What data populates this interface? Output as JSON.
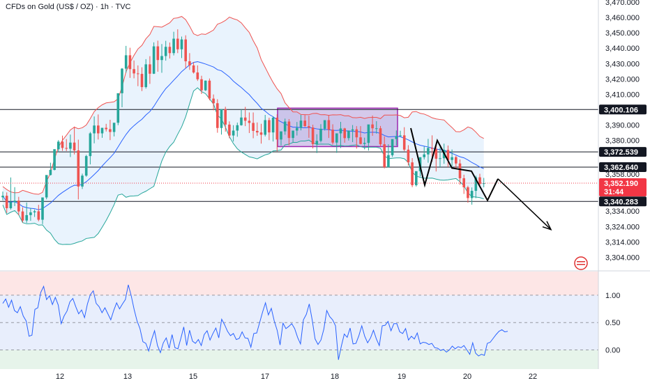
{
  "header": {
    "title": "CFDs on Gold (US$ / OZ) · 1h · TVC"
  },
  "colors": {
    "up": "#26a69a",
    "down": "#ef5350",
    "upper_band": "#ef5350",
    "middle_band": "#2962ff",
    "lower_band": "#26a69a",
    "band_fill": "#e3f0fc",
    "rectangle": "#9c27b0",
    "rectangle_fill": "#b39ddb",
    "osc_line": "#2962ff",
    "osc_bg_top": "#fde6e6",
    "osc_bg_mid": "#e8eefc",
    "osc_bg_bot": "#e6f4ea",
    "level_line": "#131722",
    "last_price": "#f23645"
  },
  "chart_data": [
    {
      "type": "candlestick",
      "title": "CFDs on Gold (US$ / OZ) · 1h · TVC",
      "x_ticks": [
        "12",
        "13",
        "15",
        "17",
        "18",
        "19",
        "20",
        "22"
      ],
      "y_ticks": [
        "3,470.000",
        "3,460.000",
        "3,450.000",
        "3,440.000",
        "3,430.000",
        "3,420.000",
        "3,410.000",
        "3,390.000",
        "3,380.000",
        "3,358.000",
        "3,334.000",
        "3,324.000",
        "3,314.000",
        "3,304.000"
      ],
      "ylim": [
        3304,
        3470
      ],
      "horizontal_levels": [
        {
          "value": 3400.106,
          "label": "3,400.106"
        },
        {
          "value": 3372.539,
          "label": "3,372.539"
        },
        {
          "value": 3362.64,
          "label": "3,362.640"
        },
        {
          "value": 3340.283,
          "label": "3,340.283"
        }
      ],
      "last_price": {
        "value": 3352.19,
        "label": "3,352.190",
        "countdown": "31:44"
      },
      "candles": [
        [
          0,
          3343.0,
          3346.7,
          3344.0,
          3341.0
        ],
        [
          1,
          3344.0,
          3346.2,
          3335.9,
          3332.9
        ],
        [
          2,
          3335.9,
          3355.9,
          3339.8,
          3335.0
        ],
        [
          3,
          3339.8,
          3349.6,
          3340.8,
          3337.3
        ],
        [
          4,
          3340.8,
          3343.3,
          3333.8,
          3331.3
        ],
        [
          5,
          3333.8,
          3336.5,
          3327.9,
          3326.6
        ],
        [
          6,
          3327.9,
          3339.6,
          3331.4,
          3326.3
        ],
        [
          7,
          3331.4,
          3336.1,
          3333.2,
          3327.7
        ],
        [
          8,
          3333.2,
          3335.1,
          3333.9,
          3330.2
        ],
        [
          9,
          3333.9,
          3338.1,
          3328.4,
          3327.4
        ],
        [
          10,
          3328.4,
          3339.3,
          3342.9,
          3325.6
        ],
        [
          11,
          3342.9,
          3356.2,
          3357.5,
          3341.7
        ],
        [
          12,
          3357.5,
          3365.5,
          3360.8,
          3357.2
        ],
        [
          13,
          3360.8,
          3367.8,
          3374.3,
          3360.5
        ],
        [
          14,
          3374.3,
          3380.2,
          3379.2,
          3372.3
        ],
        [
          15,
          3379.2,
          3383.1,
          3375.1,
          3373.2
        ],
        [
          16,
          3375.1,
          3380.9,
          3374.6,
          3373.1
        ],
        [
          17,
          3374.6,
          3383.8,
          3378.6,
          3369.2
        ],
        [
          18,
          3378.6,
          3389.0,
          3373.5,
          3370.9
        ],
        [
          19,
          3373.5,
          3380.5,
          3350.0,
          3341.6
        ],
        [
          20,
          3350.0,
          3358.4,
          3357.1,
          3348.4
        ],
        [
          21,
          3357.1,
          3370.6,
          3369.8,
          3356.4
        ],
        [
          22,
          3369.8,
          3385.5,
          3384.6,
          3364.4
        ],
        [
          23,
          3384.6,
          3395.6,
          3389.7,
          3378.1
        ],
        [
          24,
          3389.7,
          3396.9,
          3384.6,
          3380.6
        ],
        [
          25,
          3384.6,
          3388.2,
          3388.2,
          3381.7
        ],
        [
          26,
          3388.2,
          3390.8,
          3387.3,
          3385.8
        ],
        [
          27,
          3387.3,
          3393.4,
          3385.5,
          3380.2
        ],
        [
          28,
          3385.5,
          3389.6,
          3391.5,
          3382.6
        ],
        [
          29,
          3391.5,
          3407.0,
          3410.7,
          3389.9
        ],
        [
          30,
          3410.7,
          3427.1,
          3426.7,
          3401.6
        ],
        [
          31,
          3426.7,
          3441.5,
          3435.4,
          3424.1
        ],
        [
          32,
          3435.4,
          3440.3,
          3426.4,
          3420.7
        ],
        [
          33,
          3426.4,
          3432.0,
          3423.6,
          3420.4
        ],
        [
          34,
          3423.6,
          3428.8,
          3423.3,
          3415.3
        ],
        [
          35,
          3423.3,
          3427.6,
          3414.7,
          3412.1
        ],
        [
          36,
          3414.7,
          3432.9,
          3429.5,
          3413.7
        ],
        [
          37,
          3429.5,
          3434.8,
          3423.4,
          3416.8
        ],
        [
          38,
          3423.4,
          3443.8,
          3441.2,
          3423.2
        ],
        [
          39,
          3441.2,
          3444.9,
          3432.3,
          3424.7
        ],
        [
          40,
          3432.3,
          3442.7,
          3434.9,
          3424.0
        ],
        [
          41,
          3434.9,
          3444.8,
          3440.9,
          3431.9
        ],
        [
          42,
          3440.9,
          3443.7,
          3436.8,
          3433.3
        ],
        [
          43,
          3436.8,
          3450.7,
          3446.2,
          3435.3
        ],
        [
          44,
          3446.2,
          3452.3,
          3439.3,
          3436.8
        ],
        [
          45,
          3439.3,
          3447.6,
          3445.7,
          3433.6
        ],
        [
          46,
          3445.7,
          3448.4,
          3431.5,
          3426.9
        ],
        [
          47,
          3431.5,
          3436.8,
          3428.8,
          3425.9
        ],
        [
          48,
          3428.8,
          3431.0,
          3424.2,
          3423.5
        ],
        [
          49,
          3424.2,
          3428.8,
          3419.8,
          3418.7
        ],
        [
          50,
          3419.8,
          3422.1,
          3412.6,
          3410.2
        ],
        [
          51,
          3412.6,
          3419.0,
          3418.9,
          3412.2
        ],
        [
          52,
          3418.9,
          3420.3,
          3407.2,
          3406.1
        ],
        [
          53,
          3407.2,
          3409.9,
          3404.2,
          3399.6
        ],
        [
          54,
          3404.2,
          3406.8,
          3388.1,
          3385.0
        ],
        [
          55,
          3388.1,
          3396.8,
          3400.3,
          3383.8
        ],
        [
          56,
          3400.3,
          3401.9,
          3390.3,
          3385.7
        ],
        [
          57,
          3390.3,
          3392.4,
          3383.2,
          3381.4
        ],
        [
          58,
          3383.2,
          3389.9,
          3386.4,
          3379.3
        ],
        [
          59,
          3386.4,
          3391.6,
          3389.9,
          3382.4
        ],
        [
          60,
          3389.9,
          3400.2,
          3394.9,
          3389.6
        ],
        [
          61,
          3394.9,
          3401.8,
          3392.8,
          3389.3
        ],
        [
          62,
          3392.8,
          3398.2,
          3391.4,
          3384.8
        ],
        [
          63,
          3391.4,
          3398.2,
          3386.2,
          3381.4
        ],
        [
          64,
          3386.2,
          3391.7,
          3385.2,
          3383.0
        ],
        [
          65,
          3385.2,
          3390.8,
          3383.7,
          3377.9
        ],
        [
          66,
          3383.7,
          3396.6,
          3393.2,
          3382.6
        ],
        [
          67,
          3393.2,
          3394.8,
          3385.2,
          3380.2
        ],
        [
          68,
          3385.2,
          3395.6,
          3394.8,
          3379.3
        ],
        [
          69,
          3394.8,
          3397.0,
          3380.6,
          3372.9
        ],
        [
          70,
          3380.6,
          3385.1,
          3385.9,
          3376.7
        ],
        [
          71,
          3385.9,
          3394.2,
          3392.3,
          3383.7
        ],
        [
          72,
          3392.3,
          3393.9,
          3381.6,
          3376.8
        ],
        [
          73,
          3381.6,
          3384.2,
          3386.4,
          3378.7
        ],
        [
          74,
          3386.4,
          3392.0,
          3388.2,
          3383.2
        ],
        [
          75,
          3388.2,
          3396.6,
          3392.9,
          3386.5
        ],
        [
          76,
          3392.9,
          3396.6,
          3389.3,
          3388.7
        ],
        [
          77,
          3389.3,
          3396.0,
          3388.4,
          3381.7
        ],
        [
          78,
          3388.4,
          3390.2,
          3377.6,
          3374.8
        ],
        [
          79,
          3377.6,
          3384.0,
          3379.7,
          3371.8
        ],
        [
          80,
          3379.7,
          3390.6,
          3387.6,
          3378.7
        ],
        [
          81,
          3387.6,
          3391.8,
          3393.2,
          3386.4
        ],
        [
          82,
          3393.2,
          3396.4,
          3387.0,
          3381.6
        ],
        [
          83,
          3387.0,
          3390.5,
          3378.6,
          3377.3
        ],
        [
          84,
          3378.6,
          3381.7,
          3384.6,
          3371.9
        ],
        [
          85,
          3384.6,
          3392.1,
          3387.8,
          3375.1
        ],
        [
          86,
          3387.8,
          3388.2,
          3381.5,
          3378.5
        ],
        [
          87,
          3381.5,
          3386.3,
          3386.4,
          3379.9
        ],
        [
          88,
          3386.4,
          3390.0,
          3387.2,
          3378.9
        ],
        [
          89,
          3387.2,
          3389.3,
          3382.0,
          3374.7
        ],
        [
          90,
          3382.0,
          3389.3,
          3377.7,
          3377.4
        ],
        [
          91,
          3377.7,
          3381.8,
          3378.4,
          3374.2
        ],
        [
          92,
          3378.4,
          3383.7,
          3390.4,
          3373.4
        ],
        [
          93,
          3390.4,
          3396.2,
          3387.9,
          3383.0
        ],
        [
          94,
          3387.9,
          3392.5,
          3387.9,
          3384.4
        ],
        [
          95,
          3387.9,
          3389.4,
          3377.5,
          3376.0
        ],
        [
          96,
          3377.5,
          3382.6,
          3362.6,
          3361.8
        ],
        [
          97,
          3362.6,
          3377.5,
          3370.4,
          3362.5
        ],
        [
          98,
          3370.4,
          3379.3,
          3380.9,
          3369.3
        ],
        [
          99,
          3380.9,
          3386.5,
          3382.7,
          3376.6
        ],
        [
          100,
          3382.7,
          3386.3,
          3383.3,
          3382.8
        ],
        [
          101,
          3383.3,
          3388.6,
          3374.0,
          3373.0
        ],
        [
          102,
          3374.0,
          3376.9,
          3365.7,
          3363.6
        ],
        [
          103,
          3365.7,
          3368.5,
          3350.9,
          3349.6
        ],
        [
          104,
          3350.9,
          3358.3,
          3360.0,
          3350.0
        ],
        [
          105,
          3360.0,
          3366.7,
          3369.1,
          3356.6
        ],
        [
          106,
          3369.1,
          3376.1,
          3370.9,
          3367.6
        ],
        [
          107,
          3370.9,
          3381.0,
          3375.1,
          3365.5
        ],
        [
          108,
          3375.1,
          3383.3,
          3374.5,
          3366.2
        ],
        [
          109,
          3374.5,
          3377.0,
          3368.1,
          3359.8
        ],
        [
          110,
          3368.1,
          3375.5,
          3368.4,
          3362.6
        ],
        [
          111,
          3368.4,
          3377.9,
          3373.8,
          3364.8
        ],
        [
          112,
          3373.8,
          3376.7,
          3367.3,
          3362.6
        ],
        [
          113,
          3367.3,
          3374.1,
          3369.1,
          3363.2
        ],
        [
          114,
          3369.1,
          3370.0,
          3365.0,
          3361.5
        ],
        [
          115,
          3365.0,
          3367.6,
          3355.4,
          3351.2
        ],
        [
          116,
          3355.4,
          3357.7,
          3349.5,
          3345.2
        ],
        [
          117,
          3349.5,
          3350.5,
          3342.5,
          3339.5
        ],
        [
          118,
          3342.5,
          3349.4,
          3347.2,
          3338.2
        ],
        [
          119,
          3347.2,
          3357.1,
          3356.0,
          3342.4
        ],
        [
          120,
          3356.0,
          3358.3,
          3351.7,
          3350.5
        ],
        [
          121,
          3351.7,
          3355.6,
          3352.2,
          3349.5
        ]
      ],
      "bollinger": {
        "upper": "red line",
        "middle": "blue line",
        "lower": "green line"
      },
      "rectangle_zone": {
        "top": 3401,
        "bottom": 3376
      },
      "pattern_lines": "black zigzag with projected arrow to about 3322"
    },
    {
      "type": "line",
      "title": "",
      "x_ticks": [
        "12",
        "13",
        "15",
        "17",
        "18",
        "19",
        "20",
        "22"
      ],
      "y_ticks": [
        "1.00",
        "0.50",
        "0.00"
      ],
      "ylim": [
        -0.2,
        1.42
      ],
      "series": [
        {
          "values": [
            0.85,
            0.93,
            0.78,
            0.91,
            0.72,
            0.68,
            0.79,
            0.62,
            0.53,
            0.25,
            0.27,
            0.74,
            0.77,
            1.05,
            1.16,
            0.92,
            0.99,
            0.83,
            0.96,
            0.82,
            0.48,
            0.62,
            0.71,
            0.88,
            0.94,
            0.79,
            0.66,
            0.73,
            0.59,
            0.84,
            1.01,
            1.08,
            0.85,
            0.79,
            0.68,
            0.77,
            0.66,
            0.55,
            0.72,
            0.86,
            0.75,
            0.84,
            0.92,
            1.19,
            0.99,
            0.74,
            0.53,
            0.39,
            0.15,
            0.12,
            -0.02,
            0.19,
            0.35,
            0.08,
            -0.05,
            0.13,
            0.22,
            0.03,
            0.28,
            0.04,
            0.02,
            0.21,
            0.42,
            0.08,
            0.36,
            0.16,
            0.12,
            0.19,
            0.08,
            0.28,
            0.35,
            0.18,
            0.3,
            0.4,
            0.22,
            0.56,
            0.46,
            0.34,
            0.26,
            0.3,
            0.19,
            0.21,
            0.33,
            0.22,
            0.21,
            0.05,
            0.3,
            0.31,
            0.5,
            0.69,
            0.86,
            0.64,
            0.76,
            0.53,
            0.36,
            0.09,
            0.49,
            0.39,
            0.43,
            0.48,
            0.39,
            0.23,
            0.11,
            0.55,
            0.65,
            0.84,
            0.55,
            0.2,
            0.1,
            0.18,
            0.38,
            0.72,
            0.61,
            0.55,
            0.44,
            -0.18,
            0.07,
            0.29,
            0.23,
            0.4,
            0.11,
            0.12,
            0.26,
            0.44,
            0.25,
            0.13,
            0.22,
            0.36,
            0.2,
            0.08,
            0.44,
            0.45,
            0.52,
            0.35,
            0.48,
            0.48,
            0.33,
            0.3,
            0.39,
            0.18,
            0.25,
            0.2,
            0.31,
            0.11,
            0.14,
            0.13,
            0.1,
            0.12,
            0.04,
            0.03,
            -0.01,
            0.01,
            -0.04,
            0.0,
            0.07,
            0.02,
            0.06,
            0.04,
            0.08,
            0.0,
            -0.08,
            0.13,
            -0.06,
            -0.11,
            -0.08,
            -0.1,
            0.12,
            0.14,
            0.21,
            0.28,
            0.34,
            0.37,
            0.33,
            0.34
          ]
        }
      ]
    }
  ]
}
